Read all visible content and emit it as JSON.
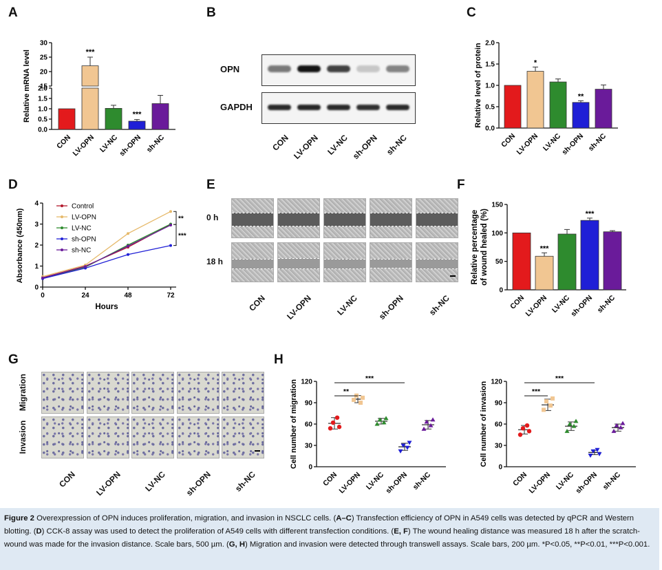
{
  "panel_labels": {
    "a": "A",
    "b": "B",
    "c": "C",
    "d": "D",
    "e": "E",
    "f": "F",
    "g": "G",
    "h": "H"
  },
  "groups": [
    "CON",
    "LV-OPN",
    "LV-NC",
    "sh-OPN",
    "sh-NC"
  ],
  "colors": {
    "con": "#e31a1c",
    "lvopn": "#f1c692",
    "lvnc": "#2e8b2e",
    "shopn": "#1f1fd6",
    "shnc": "#6a1b9a",
    "wound_gap": "#5c5c5c",
    "caption_bg": "#dfe9f3"
  },
  "chart_data": [
    {
      "id": "A",
      "type": "bar",
      "ylabel": "Relative mRNA level",
      "categories": [
        "CON",
        "LV-OPN",
        "LV-NC",
        "sh-OPN",
        "sh-NC"
      ],
      "values": [
        1.0,
        22.0,
        1.02,
        0.4,
        1.25
      ],
      "errors": [
        0,
        3.0,
        0.15,
        0.08,
        0.4
      ],
      "sig": [
        "",
        "***",
        "",
        "***",
        ""
      ],
      "lower_ticks": [
        "0.0",
        "0.5",
        "1.0",
        "1.5",
        "2.0"
      ],
      "upper_ticks": [
        "15",
        "20",
        "25",
        "30"
      ],
      "broken_axis": {
        "lower": [
          0,
          2
        ],
        "upper": [
          15,
          30
        ]
      }
    },
    {
      "id": "C",
      "type": "bar",
      "ylabel": "Relative level of protein",
      "categories": [
        "CON",
        "LV-OPN",
        "LV-NC",
        "sh-OPN",
        "sh-NC"
      ],
      "values": [
        1.0,
        1.33,
        1.08,
        0.6,
        0.91
      ],
      "errors": [
        0,
        0.1,
        0.07,
        0.04,
        0.1
      ],
      "sig": [
        "",
        "*",
        "",
        "**",
        ""
      ],
      "ylim": [
        0,
        2
      ],
      "ticks": [
        "0.0",
        "0.5",
        "1.0",
        "1.5",
        "2.0"
      ]
    },
    {
      "id": "D",
      "type": "line",
      "xlabel": "Hours",
      "ylabel": "Absorbance (450nm)",
      "x": [
        0,
        24,
        48,
        72
      ],
      "xticks": [
        "0",
        "24",
        "48",
        "72"
      ],
      "yticks": [
        "0",
        "1",
        "2",
        "3",
        "4"
      ],
      "ylim": [
        0,
        4
      ],
      "series": [
        {
          "name": "Control",
          "values": [
            0.45,
            1.0,
            1.9,
            2.98
          ]
        },
        {
          "name": "LV-OPN",
          "values": [
            0.5,
            1.05,
            2.55,
            3.6
          ]
        },
        {
          "name": "LV-NC",
          "values": [
            0.42,
            0.95,
            2.0,
            3.0
          ]
        },
        {
          "name": "sh-OPN",
          "values": [
            0.4,
            0.9,
            1.55,
            1.98
          ]
        },
        {
          "name": "sh-NC",
          "values": [
            0.44,
            0.98,
            1.95,
            2.95
          ]
        }
      ],
      "sig": [
        "**",
        "***"
      ]
    },
    {
      "id": "F",
      "type": "bar",
      "ylabel": "Relative percentage of wound healed (%)",
      "ylabel_lines": [
        "Relative percentage",
        "of wound healed (%)"
      ],
      "categories": [
        "CON",
        "LV-OPN",
        "LV-NC",
        "sh-OPN",
        "sh-NC"
      ],
      "values": [
        100,
        59,
        98,
        122,
        102
      ],
      "errors": [
        0,
        6,
        8,
        4,
        2
      ],
      "sig": [
        "",
        "***",
        "",
        "***",
        ""
      ],
      "ylim": [
        0,
        150
      ],
      "ticks": [
        "0",
        "50",
        "100",
        "150"
      ]
    },
    {
      "id": "H1",
      "type": "scatter",
      "ylabel": "Cell number of migration",
      "categories": [
        "CON",
        "LV-OPN",
        "LV-NC",
        "sh-OPN",
        "sh-NC"
      ],
      "points": [
        [
          54,
          62,
          69,
          56
        ],
        [
          94,
          100,
          90,
          97
        ],
        [
          60,
          66,
          62,
          68
        ],
        [
          22,
          30,
          27,
          34
        ],
        [
          53,
          63,
          58,
          66
        ]
      ],
      "means": [
        61,
        95,
        64,
        28,
        59
      ],
      "sd": [
        8,
        5,
        4,
        5,
        6
      ],
      "ylim": [
        0,
        120
      ],
      "ticks": [
        "0",
        "30",
        "60",
        "90",
        "120"
      ],
      "brackets": [
        {
          "from": 0,
          "to": 1,
          "label": "**"
        },
        {
          "from": 0,
          "to": 3,
          "label": "***"
        }
      ]
    },
    {
      "id": "H2",
      "type": "scatter",
      "ylabel": "Cell number of invasion",
      "categories": [
        "CON",
        "LV-OPN",
        "LV-NC",
        "sh-OPN",
        "sh-NC"
      ],
      "points": [
        [
          45,
          54,
          58,
          50
        ],
        [
          80,
          92,
          86,
          96
        ],
        [
          50,
          60,
          57,
          64
        ],
        [
          16,
          22,
          24,
          18
        ],
        [
          50,
          58,
          55,
          61
        ]
      ],
      "means": [
        52,
        87,
        57,
        20,
        55
      ],
      "sd": [
        6,
        8,
        6,
        3,
        5
      ],
      "ylim": [
        0,
        120
      ],
      "ticks": [
        "0",
        "30",
        "60",
        "90",
        "120"
      ],
      "brackets": [
        {
          "from": 0,
          "to": 1,
          "label": "***"
        },
        {
          "from": 0,
          "to": 3,
          "label": "***"
        }
      ]
    }
  ],
  "western": {
    "rows": [
      "OPN",
      "GAPDH"
    ],
    "opn_intensity": [
      0.55,
      1.0,
      0.8,
      0.2,
      0.5
    ],
    "gapdh_intensity": [
      0.9,
      0.92,
      0.9,
      0.88,
      0.9
    ]
  },
  "wound": {
    "rows": [
      "0 h",
      "18 h"
    ],
    "gap_0h": [
      1,
      1,
      1,
      1,
      1
    ],
    "gap_18h": [
      0.85,
      1.0,
      0.88,
      0.7,
      0.82
    ]
  },
  "transwell": {
    "rows": [
      "Migration",
      "Invasion"
    ]
  },
  "caption": {
    "bold_title": "Figure 2",
    "title_rest": " Overexpression of OPN induces proliferation, migration, and invasion in NSCLC cells. (",
    "s1": "A–C",
    "t1": ") Transfection efficiency of OPN in A549 cells was detected by qPCR and Western blotting. (",
    "s2": "D",
    "t2": ") CCK-8 assay was used to detect the proliferation of A549 cells with different transfection conditions. (",
    "s3": "E, F",
    "t3": ") The wound healing distance was measured 18 h after the scratch-wound was made for the invasion distance. Scale bars, 500 µm. (",
    "s4": "G, H",
    "t4": ") Migration and invasion were detected through transwell assays. Scale bars, 200 µm. *P<0.05, **P<0.01, ***P<0.001."
  }
}
